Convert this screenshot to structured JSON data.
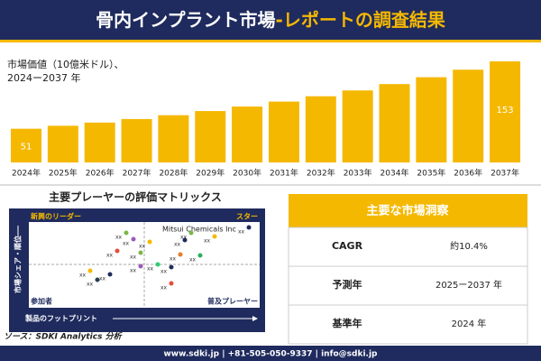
{
  "header": {
    "title_main": "骨内インプラント市場",
    "title_accent": "-レポートの調査結果"
  },
  "chart_data": {
    "type": "bar",
    "subtitle": [
      "市場価値（10億米ドル）、",
      "2024ー2037 年"
    ],
    "categories": [
      "2024年",
      "2025年",
      "2026年",
      "2027年",
      "2028年",
      "2029年",
      "2030年",
      "2031年",
      "2032年",
      "2033年",
      "2034年",
      "2035年",
      "2036年",
      "2037年"
    ],
    "values": [
      51,
      55.5,
      60.4,
      65.7,
      71.5,
      77.8,
      84.6,
      92.1,
      100.2,
      109,
      118.6,
      129,
      140.4,
      153
    ],
    "color": "#f5b800"
  },
  "matrix": {
    "title": "主要プレーヤーの評価マトリックス",
    "quadrants": [
      "新興のリーダー",
      "スター",
      "参加者",
      "普及プレーヤー"
    ],
    "y_axis_label": "市場シェア・順位",
    "x_axis_label": "製品のフットプリント",
    "highlight": "Mitsui Chemicals Inc",
    "point_labels": [
      "xx",
      "xx",
      "xx",
      "xx",
      "xx",
      "xx",
      "xx",
      "xx",
      "xx",
      "xx",
      "xx",
      "xx",
      "xx",
      "xx",
      "xx",
      "xx",
      "xx",
      "xx"
    ]
  },
  "insights": {
    "title": "主要な市場洞察",
    "rows": [
      [
        "CAGR",
        "約10.4%"
      ],
      [
        "予測年",
        "2025ー2037 年"
      ],
      [
        "基準年",
        "2024 年"
      ]
    ]
  },
  "source": "ソース：SDKI Analytics 分析",
  "footer": "www.sdki.jp | +81-505-050-9337 | info@sdki.jp"
}
